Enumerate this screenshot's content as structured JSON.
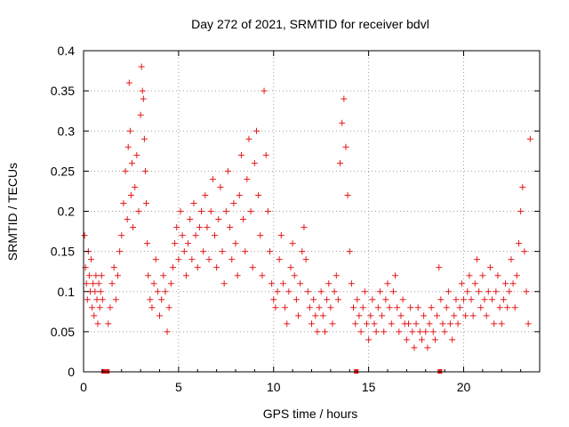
{
  "chart_data": {
    "type": "scatter",
    "title": "Day 272 of 2021, SRMTID for receiver bdvl",
    "xlabel": "GPS time / hours",
    "ylabel": "SRMTID / TECUs",
    "xlim": [
      0,
      24
    ],
    "ylim": [
      0,
      0.4
    ],
    "x_ticks": [
      0,
      5,
      10,
      15,
      20
    ],
    "x_tick_labels": [
      "0",
      "5",
      "10",
      "15",
      "20"
    ],
    "y_ticks": [
      0,
      0.05,
      0.1,
      0.15,
      0.2,
      0.25,
      0.3,
      0.35,
      0.4
    ],
    "y_tick_labels": [
      "0",
      "0.05",
      "0.1",
      "0.15",
      "0.2",
      "0.25",
      "0.3",
      "0.35",
      "0.4"
    ],
    "grid": true,
    "marker": "plus",
    "color": "#e41a1c",
    "series": [
      {
        "name": "SRMTID",
        "points": [
          [
            0.05,
            0.17
          ],
          [
            0.1,
            0.13
          ],
          [
            0.15,
            0.11
          ],
          [
            0.2,
            0.09
          ],
          [
            0.25,
            0.15
          ],
          [
            0.3,
            0.12
          ],
          [
            0.35,
            0.1
          ],
          [
            0.4,
            0.14
          ],
          [
            0.45,
            0.08
          ],
          [
            0.5,
            0.11
          ],
          [
            0.55,
            0.07
          ],
          [
            0.6,
            0.1
          ],
          [
            0.65,
            0.12
          ],
          [
            0.7,
            0.09
          ],
          [
            0.75,
            0.06
          ],
          [
            0.8,
            0.11
          ],
          [
            0.85,
            0.08
          ],
          [
            0.9,
            0.1
          ],
          [
            0.95,
            0.12
          ],
          [
            1.0,
            0.09
          ],
          [
            1.3,
            0.06
          ],
          [
            1.4,
            0.08
          ],
          [
            1.5,
            0.11
          ],
          [
            1.6,
            0.13
          ],
          [
            1.7,
            0.09
          ],
          [
            1.8,
            0.12
          ],
          [
            1.9,
            0.15
          ],
          [
            2.0,
            0.17
          ],
          [
            2.1,
            0.21
          ],
          [
            2.2,
            0.25
          ],
          [
            2.3,
            0.19
          ],
          [
            2.35,
            0.28
          ],
          [
            2.4,
            0.36
          ],
          [
            2.45,
            0.3
          ],
          [
            2.5,
            0.22
          ],
          [
            2.55,
            0.26
          ],
          [
            2.6,
            0.18
          ],
          [
            2.7,
            0.23
          ],
          [
            2.8,
            0.27
          ],
          [
            2.9,
            0.2
          ],
          [
            3.0,
            0.32
          ],
          [
            3.05,
            0.38
          ],
          [
            3.1,
            0.35
          ],
          [
            3.15,
            0.34
          ],
          [
            3.2,
            0.29
          ],
          [
            3.25,
            0.25
          ],
          [
            3.3,
            0.21
          ],
          [
            3.35,
            0.16
          ],
          [
            3.4,
            0.12
          ],
          [
            3.5,
            0.09
          ],
          [
            3.6,
            0.08
          ],
          [
            3.7,
            0.11
          ],
          [
            3.8,
            0.14
          ],
          [
            3.9,
            0.1
          ],
          [
            4.0,
            0.07
          ],
          [
            4.1,
            0.09
          ],
          [
            4.2,
            0.12
          ],
          [
            4.3,
            0.1
          ],
          [
            4.4,
            0.05
          ],
          [
            4.5,
            0.08
          ],
          [
            4.6,
            0.11
          ],
          [
            4.7,
            0.13
          ],
          [
            4.8,
            0.16
          ],
          [
            4.9,
            0.18
          ],
          [
            5.0,
            0.14
          ],
          [
            5.1,
            0.2
          ],
          [
            5.2,
            0.17
          ],
          [
            5.3,
            0.15
          ],
          [
            5.4,
            0.12
          ],
          [
            5.5,
            0.16
          ],
          [
            5.6,
            0.19
          ],
          [
            5.7,
            0.14
          ],
          [
            5.8,
            0.21
          ],
          [
            5.9,
            0.17
          ],
          [
            6.0,
            0.13
          ],
          [
            6.1,
            0.18
          ],
          [
            6.2,
            0.2
          ],
          [
            6.3,
            0.15
          ],
          [
            6.4,
            0.22
          ],
          [
            6.5,
            0.18
          ],
          [
            6.6,
            0.14
          ],
          [
            6.7,
            0.2
          ],
          [
            6.8,
            0.24
          ],
          [
            6.9,
            0.17
          ],
          [
            7.0,
            0.13
          ],
          [
            7.1,
            0.19
          ],
          [
            7.2,
            0.23
          ],
          [
            7.3,
            0.15
          ],
          [
            7.4,
            0.11
          ],
          [
            7.5,
            0.2
          ],
          [
            7.6,
            0.25
          ],
          [
            7.7,
            0.18
          ],
          [
            7.8,
            0.14
          ],
          [
            7.9,
            0.21
          ],
          [
            8.0,
            0.16
          ],
          [
            8.1,
            0.12
          ],
          [
            8.2,
            0.22
          ],
          [
            8.3,
            0.27
          ],
          [
            8.4,
            0.19
          ],
          [
            8.5,
            0.15
          ],
          [
            8.6,
            0.24
          ],
          [
            8.7,
            0.29
          ],
          [
            8.8,
            0.2
          ],
          [
            8.9,
            0.13
          ],
          [
            9.0,
            0.26
          ],
          [
            9.1,
            0.3
          ],
          [
            9.2,
            0.22
          ],
          [
            9.3,
            0.17
          ],
          [
            9.4,
            0.12
          ],
          [
            9.5,
            0.35
          ],
          [
            9.6,
            0.27
          ],
          [
            9.7,
            0.2
          ],
          [
            9.8,
            0.15
          ],
          [
            9.9,
            0.11
          ],
          [
            10.0,
            0.09
          ],
          [
            10.1,
            0.08
          ],
          [
            10.2,
            0.1
          ],
          [
            10.3,
            0.14
          ],
          [
            10.4,
            0.17
          ],
          [
            10.5,
            0.11
          ],
          [
            10.6,
            0.08
          ],
          [
            10.7,
            0.06
          ],
          [
            10.8,
            0.1
          ],
          [
            10.9,
            0.13
          ],
          [
            11.0,
            0.16
          ],
          [
            11.1,
            0.12
          ],
          [
            11.2,
            0.09
          ],
          [
            11.3,
            0.07
          ],
          [
            11.4,
            0.11
          ],
          [
            11.5,
            0.15
          ],
          [
            11.6,
            0.18
          ],
          [
            11.7,
            0.14
          ],
          [
            11.8,
            0.1
          ],
          [
            11.9,
            0.08
          ],
          [
            12.0,
            0.06
          ],
          [
            12.1,
            0.09
          ],
          [
            12.2,
            0.07
          ],
          [
            12.3,
            0.05
          ],
          [
            12.4,
            0.08
          ],
          [
            12.5,
            0.1
          ],
          [
            12.6,
            0.07
          ],
          [
            12.7,
            0.05
          ],
          [
            12.8,
            0.09
          ],
          [
            12.9,
            0.11
          ],
          [
            13.0,
            0.08
          ],
          [
            13.1,
            0.06
          ],
          [
            13.2,
            0.1
          ],
          [
            13.3,
            0.12
          ],
          [
            13.4,
            0.09
          ],
          [
            13.5,
            0.26
          ],
          [
            13.6,
            0.31
          ],
          [
            13.7,
            0.34
          ],
          [
            13.8,
            0.28
          ],
          [
            13.9,
            0.22
          ],
          [
            14.0,
            0.15
          ],
          [
            14.1,
            0.11
          ],
          [
            14.2,
            0.08
          ],
          [
            14.3,
            0.06
          ],
          [
            14.4,
            0.09
          ],
          [
            14.5,
            0.07
          ],
          [
            14.6,
            0.05
          ],
          [
            14.7,
            0.08
          ],
          [
            14.8,
            0.1
          ],
          [
            14.9,
            0.06
          ],
          [
            15.0,
            0.04
          ],
          [
            15.1,
            0.07
          ],
          [
            15.2,
            0.09
          ],
          [
            15.3,
            0.06
          ],
          [
            15.4,
            0.05
          ],
          [
            15.5,
            0.08
          ],
          [
            15.6,
            0.1
          ],
          [
            15.7,
            0.07
          ],
          [
            15.8,
            0.05
          ],
          [
            15.9,
            0.09
          ],
          [
            16.0,
            0.11
          ],
          [
            16.1,
            0.08
          ],
          [
            16.2,
            0.06
          ],
          [
            16.3,
            0.1
          ],
          [
            16.4,
            0.12
          ],
          [
            16.5,
            0.08
          ],
          [
            16.6,
            0.05
          ],
          [
            16.7,
            0.07
          ],
          [
            16.8,
            0.09
          ],
          [
            16.9,
            0.06
          ],
          [
            17.0,
            0.04
          ],
          [
            17.1,
            0.06
          ],
          [
            17.2,
            0.08
          ],
          [
            17.3,
            0.05
          ],
          [
            17.4,
            0.03
          ],
          [
            17.5,
            0.06
          ],
          [
            17.6,
            0.08
          ],
          [
            17.7,
            0.05
          ],
          [
            17.8,
            0.04
          ],
          [
            17.9,
            0.07
          ],
          [
            18.0,
            0.05
          ],
          [
            18.1,
            0.03
          ],
          [
            18.2,
            0.06
          ],
          [
            18.3,
            0.08
          ],
          [
            18.4,
            0.05
          ],
          [
            18.5,
            0.04
          ],
          [
            18.6,
            0.07
          ],
          [
            18.7,
            0.13
          ],
          [
            18.8,
            0.09
          ],
          [
            18.9,
            0.06
          ],
          [
            19.0,
            0.05
          ],
          [
            19.1,
            0.08
          ],
          [
            19.2,
            0.1
          ],
          [
            19.3,
            0.06
          ],
          [
            19.4,
            0.04
          ],
          [
            19.5,
            0.07
          ],
          [
            19.6,
            0.09
          ],
          [
            19.7,
            0.06
          ],
          [
            19.8,
            0.08
          ],
          [
            19.9,
            0.11
          ],
          [
            20.0,
            0.09
          ],
          [
            20.1,
            0.07
          ],
          [
            20.2,
            0.1
          ],
          [
            20.3,
            0.12
          ],
          [
            20.4,
            0.09
          ],
          [
            20.5,
            0.07
          ],
          [
            20.6,
            0.11
          ],
          [
            20.7,
            0.14
          ],
          [
            20.8,
            0.1
          ],
          [
            20.9,
            0.08
          ],
          [
            21.0,
            0.12
          ],
          [
            21.1,
            0.09
          ],
          [
            21.2,
            0.07
          ],
          [
            21.3,
            0.1
          ],
          [
            21.4,
            0.13
          ],
          [
            21.5,
            0.09
          ],
          [
            21.6,
            0.06
          ],
          [
            21.7,
            0.1
          ],
          [
            21.8,
            0.12
          ],
          [
            21.9,
            0.08
          ],
          [
            22.0,
            0.06
          ],
          [
            22.1,
            0.09
          ],
          [
            22.2,
            0.11
          ],
          [
            22.3,
            0.08
          ],
          [
            22.4,
            0.1
          ],
          [
            22.5,
            0.14
          ],
          [
            22.6,
            0.11
          ],
          [
            22.7,
            0.08
          ],
          [
            22.8,
            0.12
          ],
          [
            22.9,
            0.16
          ],
          [
            23.0,
            0.2
          ],
          [
            23.1,
            0.23
          ],
          [
            23.2,
            0.15
          ],
          [
            23.3,
            0.1
          ],
          [
            23.4,
            0.06
          ],
          [
            23.5,
            0.29
          ]
        ]
      }
    ],
    "gap_markers_x": [
      1.05,
      1.15,
      1.25,
      14.35,
      18.75
    ]
  }
}
